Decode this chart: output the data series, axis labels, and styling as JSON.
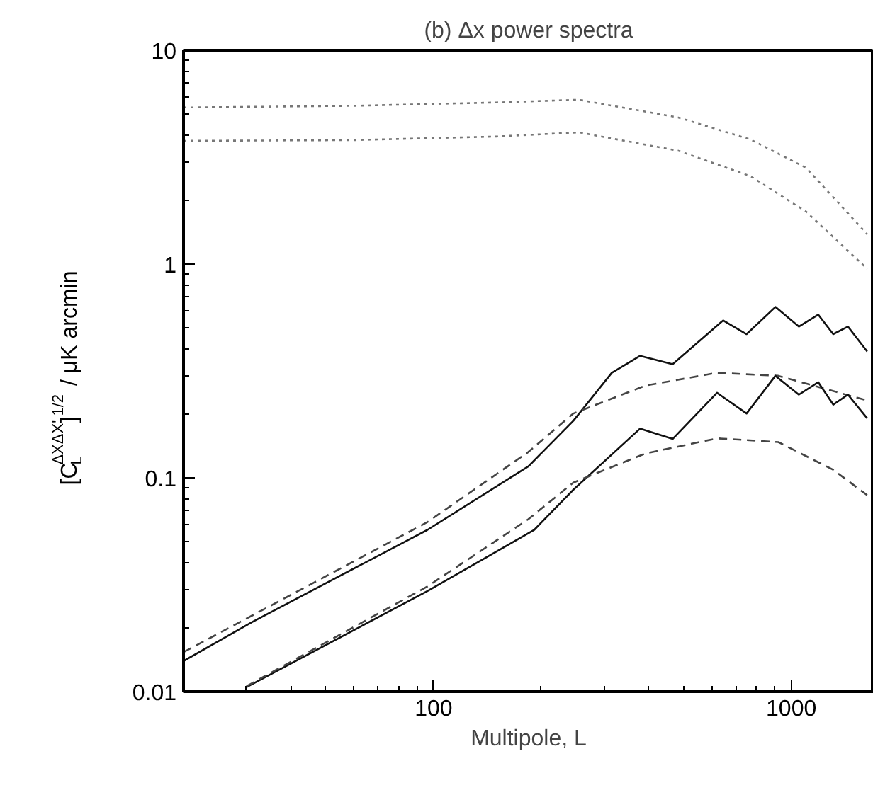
{
  "chart_data": {
    "type": "line",
    "title": "(b) Δx power spectra",
    "xlabel": "Multipole, L",
    "ylabel": "[C$_{L}$$^{ΔXΔX'}$]$^{1/2}$ / μK arcmin",
    "log": "xy",
    "xlim": [
      20,
      1700
    ],
    "ylim": [
      0.01,
      10
    ],
    "xticks": [
      100,
      1000
    ],
    "yticks": [
      0.01,
      0.1,
      1,
      10
    ],
    "grid": false,
    "series": [
      {
        "color": "#777777",
        "line_style": "dotted",
        "x": [
          20,
          60,
          150,
          255,
          483,
          768,
          1100,
          1630
        ],
        "values": [
          5.4,
          5.5,
          5.7,
          5.87,
          4.85,
          3.83,
          2.82,
          1.38
        ]
      },
      {
        "color": "#777777",
        "line_style": "dotted",
        "x": [
          20,
          60,
          150,
          255,
          483,
          768,
          1100,
          1630
        ],
        "values": [
          3.77,
          3.8,
          3.95,
          4.13,
          3.39,
          2.58,
          1.76,
          0.95
        ]
      },
      {
        "color": "#111111",
        "line_style": "solid",
        "x": [
          20,
          31,
          96,
          184,
          246,
          315,
          378,
          466,
          645,
          750,
          903,
          1050,
          1190,
          1310,
          1440,
          1630
        ],
        "values": [
          0.0139,
          0.0211,
          0.057,
          0.113,
          0.185,
          0.31,
          0.372,
          0.34,
          0.545,
          0.47,
          0.63,
          0.51,
          0.58,
          0.47,
          0.51,
          0.39
        ]
      },
      {
        "color": "#444444",
        "line_style": "dashed",
        "x": [
          20,
          96,
          184,
          246,
          391,
          620,
          920,
          1630
        ],
        "values": [
          0.0153,
          0.062,
          0.132,
          0.2,
          0.27,
          0.31,
          0.3,
          0.23
        ]
      },
      {
        "color": "#111111",
        "line_style": "solid",
        "x": [
          30,
          96,
          191,
          246,
          378,
          466,
          620,
          750,
          903,
          1050,
          1190,
          1310,
          1440,
          1630
        ],
        "values": [
          0.0105,
          0.0295,
          0.057,
          0.088,
          0.17,
          0.152,
          0.25,
          0.2,
          0.3,
          0.245,
          0.28,
          0.22,
          0.245,
          0.19
        ]
      },
      {
        "color": "#444444",
        "line_style": "dashed",
        "x": [
          30,
          96,
          184,
          246,
          391,
          620,
          920,
          1310,
          1630
        ],
        "values": [
          0.0106,
          0.031,
          0.064,
          0.095,
          0.13,
          0.153,
          0.147,
          0.109,
          0.083
        ]
      }
    ]
  }
}
